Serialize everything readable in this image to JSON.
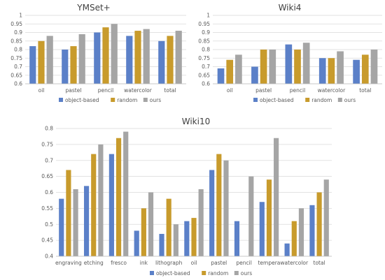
{
  "chart_data": [
    {
      "type": "bar",
      "title": "YMSet+",
      "categories": [
        "oil",
        "pastel",
        "pencil",
        "watercolor",
        "total"
      ],
      "ylim": [
        0.6,
        1.0
      ],
      "yticks": [
        0.6,
        0.65,
        0.7,
        0.75,
        0.8,
        0.85,
        0.9,
        0.95,
        1
      ],
      "grid": true,
      "legend_position": "bottom",
      "series": [
        {
          "name": "object-based",
          "color": "#5B80C8",
          "values": [
            0.82,
            0.8,
            0.9,
            0.88,
            0.85
          ]
        },
        {
          "name": "random",
          "color": "#C89B2C",
          "values": [
            0.85,
            0.82,
            0.93,
            0.91,
            0.88
          ]
        },
        {
          "name": "ours",
          "color": "#A5A5A5",
          "values": [
            0.88,
            0.89,
            0.95,
            0.92,
            0.91
          ]
        }
      ]
    },
    {
      "type": "bar",
      "title": "Wiki4",
      "categories": [
        "oil",
        "pastel",
        "pencil",
        "watercolor",
        "total"
      ],
      "ylim": [
        0.6,
        1.0
      ],
      "yticks": [
        0.6,
        0.65,
        0.7,
        0.75,
        0.8,
        0.85,
        0.9,
        0.95,
        1
      ],
      "grid": true,
      "legend_position": "bottom",
      "series": [
        {
          "name": "object-based",
          "color": "#5B80C8",
          "values": [
            0.69,
            0.7,
            0.83,
            0.75,
            0.74
          ]
        },
        {
          "name": "random",
          "color": "#C89B2C",
          "values": [
            0.74,
            0.8,
            0.8,
            0.75,
            0.77
          ]
        },
        {
          "name": "ours",
          "color": "#A5A5A5",
          "values": [
            0.77,
            0.8,
            0.84,
            0.79,
            0.8
          ]
        }
      ]
    },
    {
      "type": "bar",
      "title": "Wiki10",
      "categories": [
        "engraving",
        "etching",
        "fresco",
        "ink",
        "lithograph",
        "oil",
        "pastel",
        "pencil",
        "tempera",
        "watercolor",
        "total"
      ],
      "ylim": [
        0.4,
        0.8
      ],
      "yticks": [
        0.4,
        0.45,
        0.5,
        0.55,
        0.6,
        0.65,
        0.7,
        0.75,
        0.8
      ],
      "grid": true,
      "legend_position": "bottom",
      "series": [
        {
          "name": "object-based",
          "color": "#5B80C8",
          "values": [
            0.58,
            0.62,
            0.72,
            0.48,
            0.47,
            0.51,
            0.67,
            0.51,
            0.57,
            0.44,
            0.56
          ]
        },
        {
          "name": "random",
          "color": "#C89B2C",
          "values": [
            0.67,
            0.72,
            0.77,
            0.55,
            0.58,
            0.52,
            0.72,
            0.4,
            0.64,
            0.51,
            0.6
          ]
        },
        {
          "name": "ours",
          "color": "#A5A5A5",
          "values": [
            0.61,
            0.75,
            0.79,
            0.6,
            0.5,
            0.61,
            0.7,
            0.65,
            0.77,
            0.55,
            0.64
          ]
        }
      ]
    }
  ]
}
